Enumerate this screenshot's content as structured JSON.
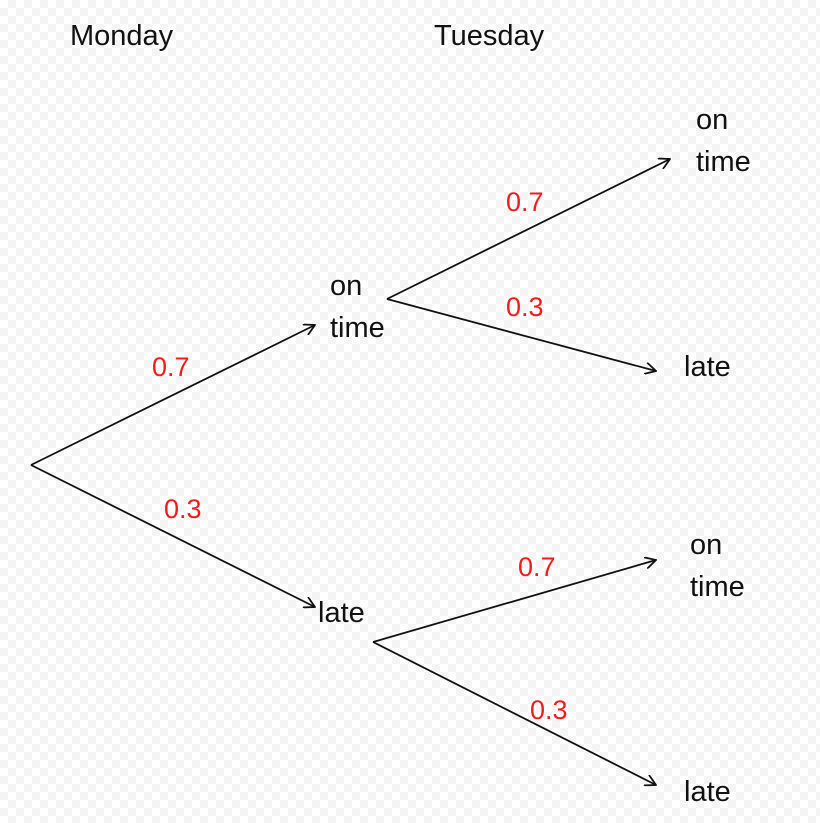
{
  "colors": {
    "line": "#111111",
    "probability": "#ee1c1c"
  },
  "headers": {
    "monday": "Monday",
    "tuesday": "Tuesday"
  },
  "monday": {
    "on_time": {
      "line1": "on",
      "line2": "time",
      "probability": "0.7"
    },
    "late": {
      "label": "late",
      "probability": "0.3"
    }
  },
  "tuesday_after_on_time": {
    "on_time": {
      "line1": "on",
      "line2": "time",
      "probability": "0.7"
    },
    "late": {
      "label": "late",
      "probability": "0.3"
    }
  },
  "tuesday_after_late": {
    "on_time": {
      "line1": "on",
      "line2": "time",
      "probability": "0.7"
    },
    "late": {
      "label": "late",
      "probability": "0.3"
    }
  }
}
